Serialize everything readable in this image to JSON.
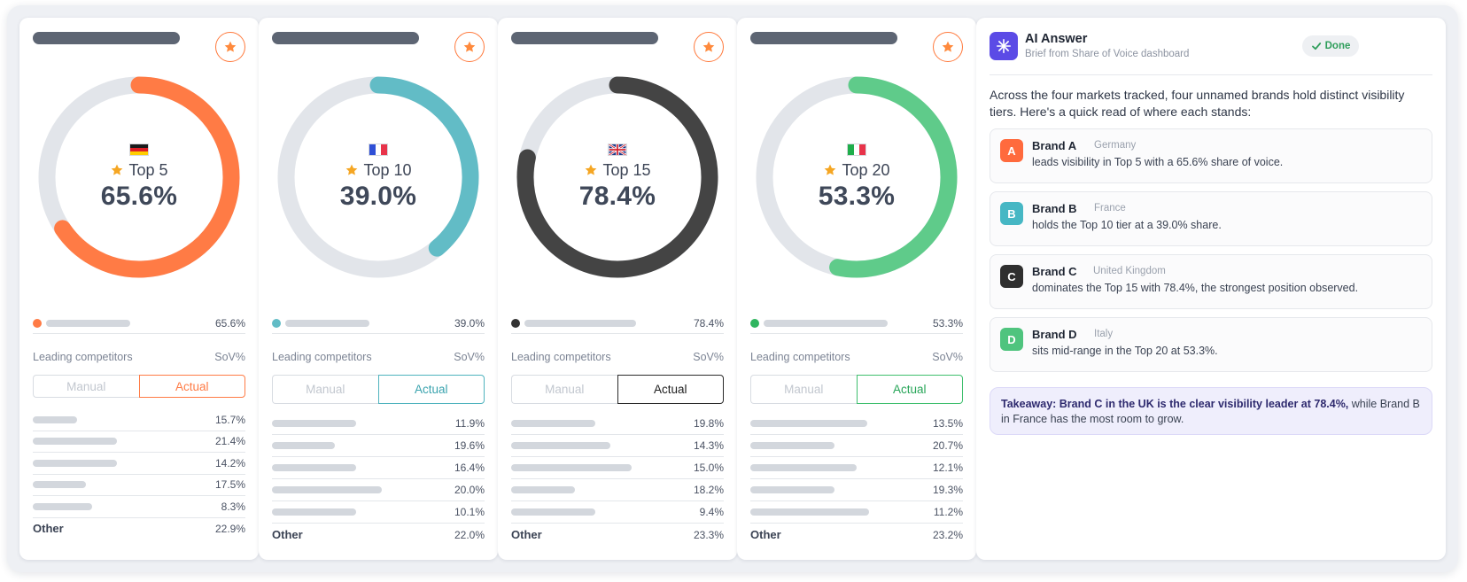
{
  "colors": {
    "brand_a": "#ff7b45",
    "brand_b": "#62bcc6",
    "brand_c": "#444444",
    "brand_d": "#5fcb8a",
    "track": "#e2e5ea",
    "ai_accent": "#5b4be6",
    "done_green": "#2f9e5b"
  },
  "cards": [
    {
      "flag": "germany",
      "tier": "Top 5",
      "percent": "65.6%",
      "share_value": 65.6,
      "brand_value": "65.6%",
      "competitors_label": "Leading competitors",
      "sov_label": "SoV%",
      "manual_label": "Manual",
      "actual_label": "Actual",
      "competitors": [
        "15.7%",
        "21.4%",
        "14.2%",
        "17.5%",
        "8.3%"
      ],
      "other_label": "Other",
      "other_value": "22.9%"
    },
    {
      "flag": "france",
      "tier": "Top 10",
      "percent": "39.0%",
      "share_value": 39.0,
      "brand_value": "39.0%",
      "competitors_label": "Leading competitors",
      "sov_label": "SoV%",
      "manual_label": "Manual",
      "actual_label": "Actual",
      "competitors": [
        "11.9%",
        "19.6%",
        "16.4%",
        "20.0%",
        "10.1%"
      ],
      "other_label": "Other",
      "other_value": "22.0%"
    },
    {
      "flag": "united-kingdom",
      "tier": "Top 15",
      "percent": "78.4%",
      "share_value": 78.4,
      "brand_value": "78.4%",
      "competitors_label": "Leading competitors",
      "sov_label": "SoV%",
      "manual_label": "Manual",
      "actual_label": "Actual",
      "competitors": [
        "19.8%",
        "14.3%",
        "15.0%",
        "18.2%",
        "9.4%"
      ],
      "other_label": "Other",
      "other_value": "23.3%"
    },
    {
      "flag": "italy",
      "tier": "Top 20",
      "percent": "53.3%",
      "share_value": 53.3,
      "brand_value": "53.3%",
      "competitors_label": "Leading competitors",
      "sov_label": "SoV%",
      "manual_label": "Manual",
      "actual_label": "Actual",
      "competitors": [
        "13.5%",
        "20.7%",
        "12.1%",
        "19.3%",
        "11.2%"
      ],
      "other_label": "Other",
      "other_value": "23.2%"
    }
  ],
  "ai": {
    "title": "AI Answer",
    "subtitle": "Brief from Share of Voice dashboard",
    "status": "Done",
    "intro": "Across the four markets tracked, four unnamed brands hold distinct visibility tiers. Here's a quick read of where each stands:",
    "brands": [
      {
        "badge": "A",
        "name": "Brand A",
        "country": "Germany",
        "desc": "leads visibility in Top 5 with a 65.6% share of voice."
      },
      {
        "badge": "B",
        "name": "Brand B",
        "country": "France",
        "desc": "holds the Top 10 tier at a 39.0% share."
      },
      {
        "badge": "C",
        "name": "Brand C",
        "country": "United Kingdom",
        "desc": "dominates the Top 15 with 78.4%, the strongest position observed."
      },
      {
        "badge": "D",
        "name": "Brand D",
        "country": "Italy",
        "desc": "sits mid-range in the Top 20 at 53.3%."
      }
    ],
    "takeaway_bold": "Takeaway: Brand C in the UK is the clear visibility leader at 78.4%,",
    "takeaway_rest": "while Brand B in France has the most room to grow."
  }
}
